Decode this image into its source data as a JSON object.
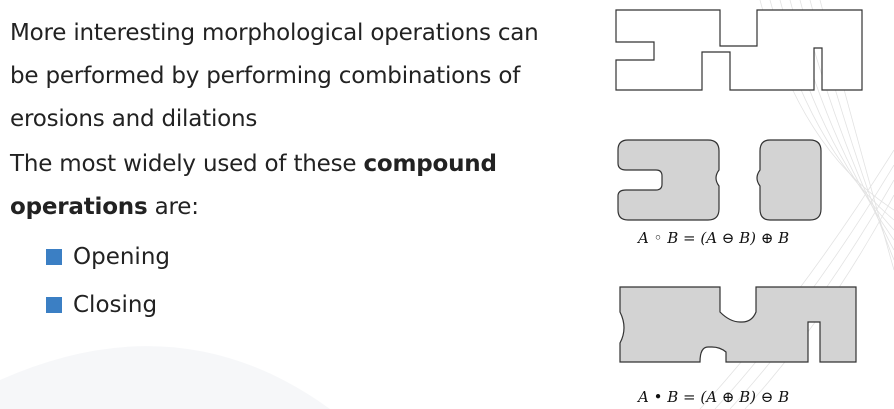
{
  "text": {
    "p1": "More interesting morphological operations can be performed by performing combinations of erosions and dilations",
    "p2_before": "The most widely used of these ",
    "p2_bold": "compound operations",
    "p2_after": " are:",
    "items": [
      "Opening",
      "Closing"
    ]
  },
  "figure": {
    "opening_formula": "A ◦ B = (A ⊖ B) ⊕ B",
    "closing_formula": "A • B = (A ⊕ B) ⊖ B"
  },
  "colors": {
    "bullet": "#3b7fc4",
    "shape_fill": "#d3d3d3",
    "shape_stroke": "#333333",
    "text": "#222222"
  },
  "icons": {
    "bullet": "square-bullet-icon"
  }
}
